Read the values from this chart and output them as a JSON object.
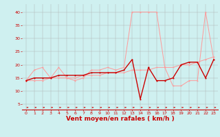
{
  "xlabel": "Vent moyen/en rafales ( km/h )",
  "ylabel_ticks": [
    5,
    10,
    15,
    20,
    25,
    30,
    35,
    40
  ],
  "ylim": [
    3,
    43
  ],
  "xlim": [
    -0.5,
    23.5
  ],
  "bg_color": "#cff0f0",
  "grid_color": "#aaaaaa",
  "line_light_color": "#ff9999",
  "line_dark_color": "#cc0000",
  "line1_x": [
    0,
    1,
    2,
    3,
    4,
    5,
    6,
    7,
    8,
    9,
    10,
    11,
    12,
    13,
    14,
    15,
    16,
    17,
    18,
    19,
    20,
    21,
    22,
    23
  ],
  "line1_y": [
    14,
    18,
    19,
    15,
    19,
    15,
    14,
    15,
    18,
    18,
    19,
    18,
    19,
    40,
    40,
    40,
    40,
    19,
    12,
    12,
    14,
    14,
    40,
    22
  ],
  "line2_x": [
    0,
    1,
    2,
    3,
    4,
    5,
    6,
    7,
    8,
    9,
    10,
    11,
    12,
    13,
    14,
    15,
    16,
    17,
    18,
    19,
    20,
    21,
    22,
    23
  ],
  "line2_y": [
    14,
    14,
    14,
    15,
    15,
    15,
    15,
    16,
    16,
    16,
    17,
    17,
    17,
    18,
    18,
    18,
    19,
    19,
    19,
    20,
    20,
    21,
    22,
    23
  ],
  "line3_x": [
    0,
    1,
    2,
    3,
    4,
    5,
    6,
    7,
    8,
    9,
    10,
    11,
    12,
    13,
    14,
    15,
    16,
    17,
    18,
    19,
    20,
    21,
    22,
    23
  ],
  "line3_y": [
    14,
    15,
    15,
    15,
    16,
    16,
    16,
    16,
    17,
    17,
    17,
    17,
    18,
    22,
    7,
    19,
    14,
    14,
    15,
    20,
    21,
    21,
    15,
    22
  ],
  "tick_label_color": "#cc0000",
  "tick_fontsize": 4.5,
  "xlabel_fontsize": 6.5,
  "xlabel_color": "#cc0000",
  "arrow_color": "#cc0000"
}
